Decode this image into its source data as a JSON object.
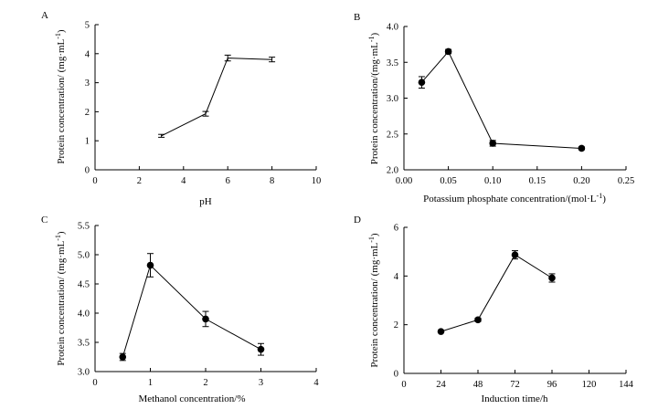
{
  "chart_data": [
    {
      "type": "line",
      "panel": "A",
      "xlabel": "pH",
      "ylabel": "Protein concentration/ (mg·mL",
      "ylabel_sup": "-1",
      "ylabel_end": ")",
      "xlim": [
        0,
        10
      ],
      "ylim": [
        0,
        5
      ],
      "xticks": [
        0,
        2,
        4,
        6,
        8,
        10
      ],
      "yticks": [
        0,
        1,
        2,
        3,
        4,
        5
      ],
      "x_tick_labels": [
        "0",
        "2",
        "4",
        "6",
        "8",
        "10"
      ],
      "y_tick_labels": [
        "0",
        "1",
        "2",
        "3",
        "4",
        "5"
      ],
      "markers": false,
      "x": [
        3,
        5,
        6,
        8
      ],
      "y": [
        1.17,
        1.93,
        3.85,
        3.8
      ],
      "err": [
        0.05,
        0.08,
        0.1,
        0.08
      ]
    },
    {
      "type": "line",
      "panel": "B",
      "xlabel": "Potassium phosphate concentration/(mol·L",
      "xlabel_sup": "-1",
      "xlabel_end": ")",
      "ylabel": "Protein concentration/(mg·mL",
      "ylabel_sup": "-1",
      "ylabel_end": ")",
      "xlim": [
        0,
        0.25
      ],
      "ylim": [
        2.0,
        4.0
      ],
      "xticks": [
        0,
        0.05,
        0.1,
        0.15,
        0.2,
        0.25
      ],
      "yticks": [
        2.0,
        2.5,
        3.0,
        3.5,
        4.0
      ],
      "x_tick_labels": [
        "0.00",
        "0.05",
        "0.10",
        "0.15",
        "0.20",
        "0.25"
      ],
      "y_tick_labels": [
        "2.0",
        "2.5",
        "3.0",
        "3.5",
        "4.0"
      ],
      "markers": true,
      "x": [
        0.02,
        0.05,
        0.1,
        0.2
      ],
      "y": [
        3.22,
        3.65,
        2.37,
        2.3
      ],
      "err": [
        0.08,
        0.03,
        0.04,
        0.02
      ]
    },
    {
      "type": "line",
      "panel": "C",
      "xlabel": "Methanol concentration/%",
      "ylabel": "Protein concentration/ (mg·mL",
      "ylabel_sup": "-1",
      "ylabel_end": ")",
      "xlim": [
        0,
        4
      ],
      "ylim": [
        3.0,
        5.5
      ],
      "xticks": [
        0,
        1,
        2,
        3,
        4
      ],
      "yticks": [
        3.0,
        3.5,
        4.0,
        4.5,
        5.0,
        5.5
      ],
      "x_tick_labels": [
        "0",
        "1",
        "2",
        "3",
        "4"
      ],
      "y_tick_labels": [
        "3.0",
        "3.5",
        "4.0",
        "4.5",
        "5.0",
        "5.5"
      ],
      "markers": true,
      "x": [
        0.5,
        1,
        2,
        3
      ],
      "y": [
        3.25,
        4.82,
        3.9,
        3.38
      ],
      "err": [
        0.06,
        0.2,
        0.13,
        0.1
      ]
    },
    {
      "type": "line",
      "panel": "D",
      "xlabel": "Induction time/h",
      "ylabel": "Protein concentration/ (mg·mL",
      "ylabel_sup": "-1",
      "ylabel_end": ")",
      "xlim": [
        0,
        144
      ],
      "ylim": [
        0,
        6
      ],
      "xticks": [
        0,
        24,
        48,
        72,
        96,
        120,
        144
      ],
      "yticks": [
        0,
        2,
        4,
        6
      ],
      "x_tick_labels": [
        "0",
        "24",
        "48",
        "72",
        "96",
        "120",
        "144"
      ],
      "y_tick_labels": [
        "0",
        "2",
        "4",
        "6"
      ],
      "markers": true,
      "x": [
        24,
        48,
        72,
        96
      ],
      "y": [
        1.72,
        2.2,
        4.87,
        3.92
      ],
      "err": [
        0.05,
        0.07,
        0.17,
        0.17
      ]
    }
  ]
}
